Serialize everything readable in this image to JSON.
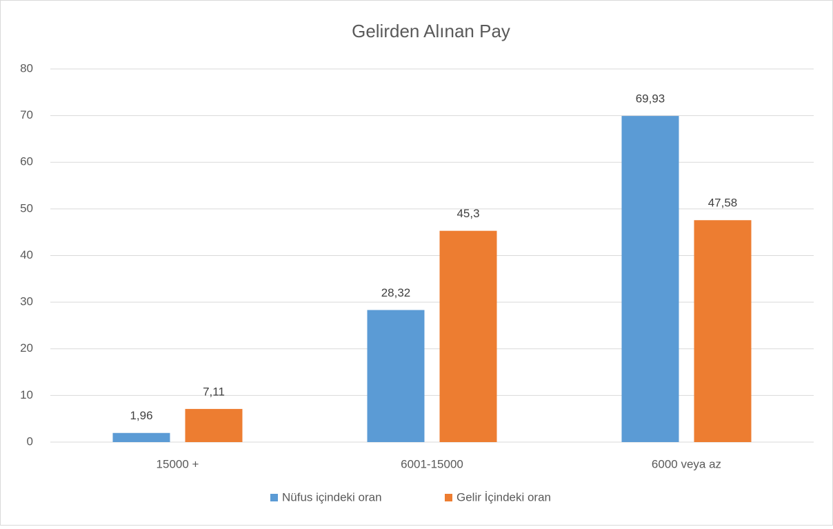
{
  "chart_data": {
    "type": "bar",
    "title": "Gelirden Alınan Pay",
    "categories": [
      "15000 +",
      "6001-15000",
      "6000 veya az"
    ],
    "series": [
      {
        "name": "Nüfus içindeki oran",
        "color": "#5b9bd5",
        "values": [
          1.96,
          28.32,
          69.93
        ],
        "value_labels": [
          "1,96",
          "28,32",
          "69,93"
        ]
      },
      {
        "name": "Gelir İçindeki oran",
        "color": "#ed7d31",
        "values": [
          7.11,
          45.3,
          47.58
        ],
        "value_labels": [
          "7,11",
          "45,3",
          "47,58"
        ]
      }
    ],
    "ylim": [
      0,
      80
    ],
    "yticks": [
      0,
      10,
      20,
      30,
      40,
      50,
      60,
      70,
      80
    ],
    "grid": true,
    "legend": "bottom"
  }
}
